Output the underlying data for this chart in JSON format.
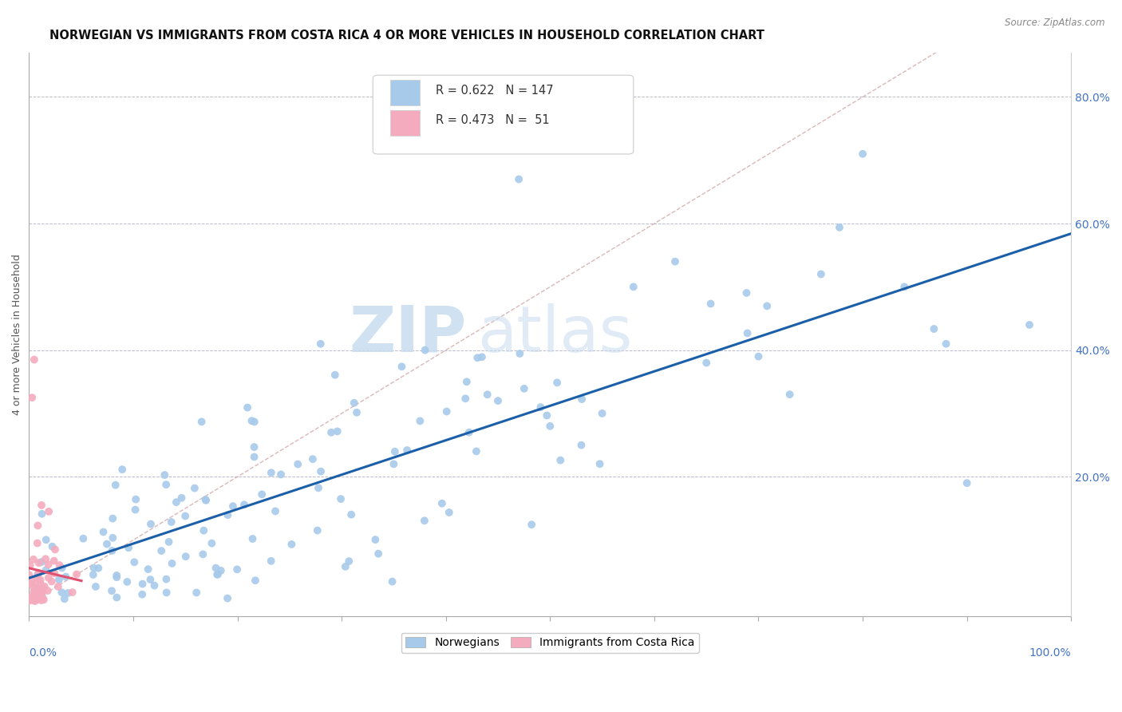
{
  "title": "NORWEGIAN VS IMMIGRANTS FROM COSTA RICA 4 OR MORE VEHICLES IN HOUSEHOLD CORRELATION CHART",
  "source": "Source: ZipAtlas.com",
  "ylabel": "4 or more Vehicles in Household",
  "ylabel_right_ticks": [
    "80.0%",
    "60.0%",
    "40.0%",
    "20.0%"
  ],
  "ylabel_right_vals": [
    0.8,
    0.6,
    0.4,
    0.2
  ],
  "legend_label1": "Norwegians",
  "legend_label2": "Immigrants from Costa Rica",
  "R1": 0.622,
  "N1": 147,
  "R2": 0.473,
  "N2": 51,
  "blue_color": "#A8CAEA",
  "pink_color": "#F4ABBE",
  "blue_line_color": "#1A5FA8",
  "pink_line_color": "#E05070",
  "diag_color": "#DDAAAA",
  "title_fontsize": 10.5,
  "axis_label_fontsize": 9,
  "tick_fontsize": 10,
  "right_tick_color": "#4472C4",
  "xlabel_color": "#4472C4"
}
